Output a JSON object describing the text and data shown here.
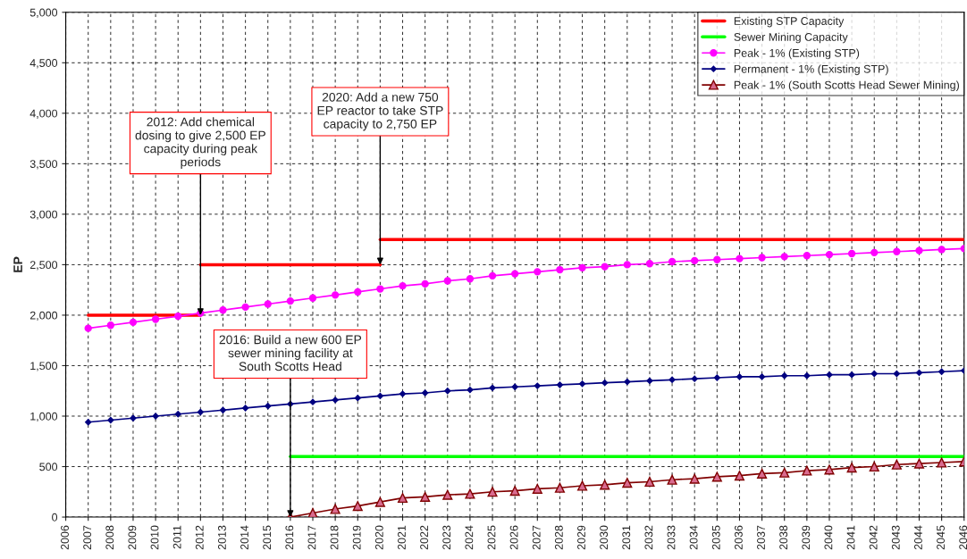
{
  "chart_data": {
    "type": "line",
    "ylabel": "EP",
    "xlim": [
      2006,
      2046
    ],
    "xticks": [
      2006,
      2007,
      2008,
      2009,
      2010,
      2011,
      2012,
      2013,
      2014,
      2015,
      2016,
      2017,
      2018,
      2019,
      2020,
      2021,
      2022,
      2023,
      2024,
      2025,
      2026,
      2027,
      2028,
      2029,
      2030,
      2031,
      2032,
      2033,
      2034,
      2035,
      2036,
      2037,
      2038,
      2039,
      2040,
      2041,
      2042,
      2043,
      2044,
      2045,
      2046
    ],
    "ylim": [
      0,
      5000
    ],
    "yticks": [
      0,
      500,
      {
        "value": 1000,
        "label": "1,000"
      },
      {
        "value": 1500,
        "label": "1,500"
      },
      {
        "value": 2000,
        "label": "2,000"
      },
      {
        "value": 2500,
        "label": "2,500"
      },
      {
        "value": 3000,
        "label": "3,000"
      },
      {
        "value": 3500,
        "label": "3,500"
      },
      {
        "value": 4000,
        "label": "4,000"
      },
      {
        "value": 4500,
        "label": "4,500"
      },
      {
        "value": 5000,
        "label": "5,000"
      }
    ],
    "grid": true,
    "legend": "top right",
    "line_style": "solid",
    "series": [
      {
        "name": "Existing STP Capacity",
        "color": "#ff0000",
        "marker": "none",
        "x": [
          2007,
          2012
        ],
        "values": [
          2000,
          2000
        ]
      },
      {
        "color": "#ff0000",
        "marker": "none",
        "x": [
          2012,
          2020
        ],
        "values": [
          2500,
          2500
        ]
      },
      {
        "color": "#ff0000",
        "marker": "none",
        "x": [
          2020,
          2046
        ],
        "values": [
          2750,
          2750
        ]
      },
      {
        "name": "Sewer Mining Capacity",
        "color": "#00ff00",
        "marker": "none",
        "x": [
          2016,
          2046
        ],
        "values": [
          600,
          600
        ]
      },
      {
        "name": "Peak - 1% (Existing STP)",
        "color": "#ff00ff",
        "marker": "circle",
        "x": [
          2007,
          2008,
          2009,
          2010,
          2011,
          2012,
          2013,
          2014,
          2015,
          2016,
          2017,
          2018,
          2019,
          2020,
          2021,
          2022,
          2023,
          2024,
          2025,
          2026,
          2027,
          2028,
          2029,
          2030,
          2031,
          2032,
          2033,
          2034,
          2035,
          2036,
          2037,
          2038,
          2039,
          2040,
          2041,
          2042,
          2043,
          2044,
          2045,
          2046
        ],
        "values": [
          1870,
          1900,
          1930,
          1960,
          1990,
          2020,
          2050,
          2080,
          2110,
          2140,
          2170,
          2200,
          2230,
          2260,
          2290,
          2310,
          2340,
          2360,
          2390,
          2410,
          2430,
          2450,
          2470,
          2480,
          2500,
          2510,
          2530,
          2540,
          2550,
          2560,
          2570,
          2580,
          2590,
          2600,
          2610,
          2620,
          2630,
          2640,
          2650,
          2660
        ]
      },
      {
        "name": "Permanent - 1% (Existing STP)",
        "color": "#000080",
        "marker": "diamond",
        "x": [
          2007,
          2008,
          2009,
          2010,
          2011,
          2012,
          2013,
          2014,
          2015,
          2016,
          2017,
          2018,
          2019,
          2020,
          2021,
          2022,
          2023,
          2024,
          2025,
          2026,
          2027,
          2028,
          2029,
          2030,
          2031,
          2032,
          2033,
          2034,
          2035,
          2036,
          2037,
          2038,
          2039,
          2040,
          2041,
          2042,
          2043,
          2044,
          2045,
          2046
        ],
        "values": [
          940,
          960,
          980,
          1000,
          1020,
          1040,
          1060,
          1080,
          1100,
          1120,
          1140,
          1160,
          1180,
          1200,
          1220,
          1230,
          1250,
          1260,
          1280,
          1290,
          1300,
          1310,
          1320,
          1330,
          1340,
          1350,
          1360,
          1370,
          1380,
          1390,
          1390,
          1400,
          1400,
          1410,
          1410,
          1420,
          1420,
          1430,
          1440,
          1450
        ]
      },
      {
        "name": "Peak - 1% (South Scotts Head Sewer Mining)",
        "color": "#800000",
        "marker": "triangle",
        "x": [
          2016,
          2017,
          2018,
          2019,
          2020,
          2021,
          2022,
          2023,
          2024,
          2025,
          2026,
          2027,
          2028,
          2029,
          2030,
          2031,
          2032,
          2033,
          2034,
          2035,
          2036,
          2037,
          2038,
          2039,
          2040,
          2041,
          2042,
          2043,
          2044,
          2045,
          2046
        ],
        "values": [
          0,
          40,
          80,
          110,
          150,
          190,
          200,
          220,
          230,
          250,
          260,
          280,
          290,
          310,
          320,
          340,
          350,
          370,
          380,
          400,
          410,
          430,
          440,
          460,
          470,
          490,
          500,
          520,
          530,
          540,
          550
        ]
      }
    ],
    "annotations": [
      {
        "text": "2012: Add chemical\ndosing to give 2,500 EP\ncapacity during peak\nperiods",
        "x": 2012,
        "y": 2000
      },
      {
        "text": "2020: Add a new 750\nEP reactor to take STP\ncapacity to 2,750 EP",
        "x": 2020,
        "y": 2500
      },
      {
        "text": "2016: Build a new 600 EP\nsewer mining facility at\nSouth Scotts Head",
        "x": 2016,
        "y": 0
      }
    ]
  }
}
